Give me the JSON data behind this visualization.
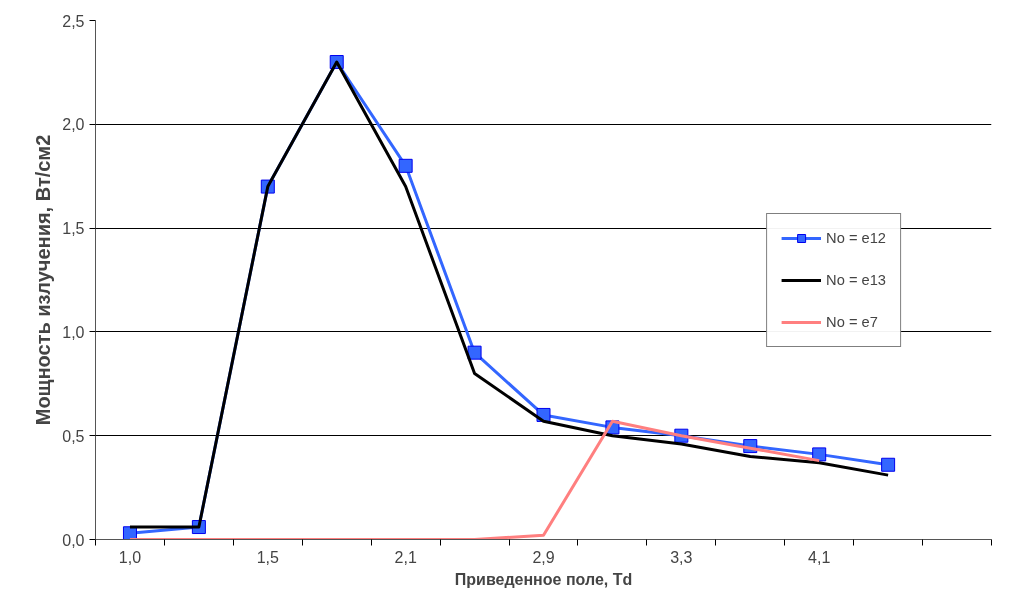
{
  "chart_data": {
    "type": "line",
    "xlabel": "Приведенное поле, Td",
    "ylabel": "Мощность излучения, Вт/см2",
    "categories": [
      "1,0",
      null,
      "1,5",
      null,
      "2,1",
      null,
      "2,9",
      null,
      "3,3",
      null,
      "4,1",
      null,
      null
    ],
    "series": [
      {
        "name": "No = e12",
        "color": "#3366ff",
        "marker": "square",
        "values": [
          0.03,
          0.06,
          1.7,
          2.3,
          1.8,
          0.9,
          0.6,
          0.54,
          0.5,
          0.45,
          0.41,
          0.36,
          null
        ]
      },
      {
        "name": "No = e13",
        "color": "#000000",
        "marker": "none",
        "values": [
          0.06,
          0.06,
          1.7,
          2.3,
          1.7,
          0.8,
          0.57,
          0.5,
          0.46,
          0.4,
          0.37,
          0.31,
          null
        ]
      },
      {
        "name": "No = e7",
        "color": "#ff7f7f",
        "marker": "none",
        "values": [
          0,
          0,
          0,
          0,
          0,
          0,
          0.02,
          0.57,
          0.5,
          0.44,
          0.38,
          null,
          null
        ]
      }
    ],
    "ylim": [
      0,
      2.5
    ],
    "yticks": [
      {
        "value": 0,
        "label": "0,0"
      },
      {
        "value": 0.5,
        "label": "0,5"
      },
      {
        "value": 1,
        "label": "1,0"
      },
      {
        "value": 1.5,
        "label": "1,5"
      },
      {
        "value": 2,
        "label": "2,0"
      },
      {
        "value": 2.5,
        "label": "2,5"
      }
    ],
    "grid": "y",
    "legend": "right",
    "line_style": "solid"
  }
}
